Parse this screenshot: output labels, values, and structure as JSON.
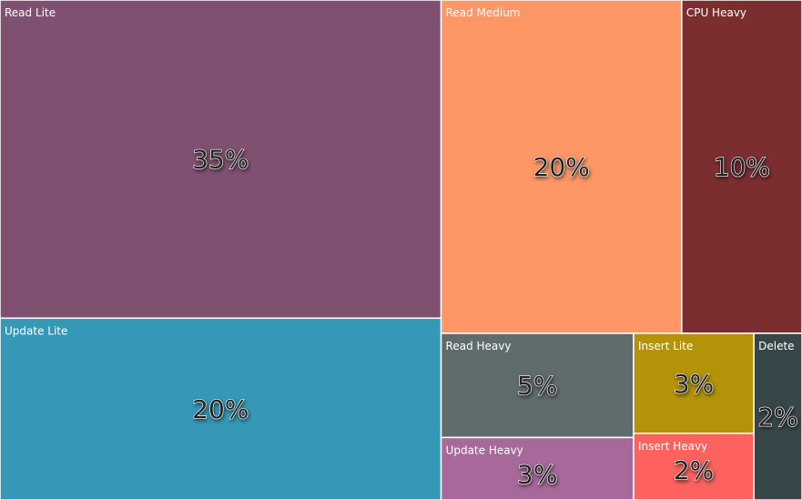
{
  "chart_data": {
    "type": "treemap",
    "categories": [
      "Read Lite",
      "Update Lite",
      "Read Medium",
      "CPU Heavy",
      "Read Heavy",
      "Update Heavy",
      "Insert Lite",
      "Insert Heavy",
      "Delete"
    ],
    "values": [
      35,
      20,
      20,
      10,
      5,
      3,
      3,
      2,
      2
    ],
    "value_labels": [
      "35%",
      "20%",
      "20%",
      "10%",
      "5%",
      "3%",
      "3%",
      "2%",
      "2%"
    ],
    "colors": [
      "#7f5070",
      "#3598b7",
      "#fe9666",
      "#7b2d30",
      "#5f6b6d",
      "#a66999",
      "#b59308",
      "#fd625e",
      "#374649"
    ]
  }
}
